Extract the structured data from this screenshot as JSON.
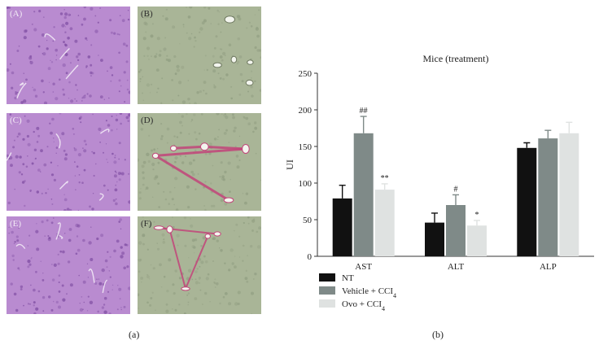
{
  "panel_a": {
    "panels": [
      {
        "label": "(A)",
        "stain": "he"
      },
      {
        "label": "(B)",
        "stain": "sirius"
      },
      {
        "label": "(C)",
        "stain": "he"
      },
      {
        "label": "(D)",
        "stain": "sirius"
      },
      {
        "label": "(E)",
        "stain": "he"
      },
      {
        "label": "(F)",
        "stain": "sirius"
      }
    ],
    "caption": "(a)"
  },
  "panel_b_caption": "(b)",
  "colors": {
    "he_tissue": "#b98bd0",
    "sirius_tissue": "#a9b597",
    "collagen": "#c2457a"
  },
  "chart_data": {
    "type": "bar",
    "title": "Mice (treatment)",
    "ylabel": "UI",
    "xlabel": "",
    "categories": [
      "AST",
      "ALT",
      "ALP"
    ],
    "ylim": [
      0,
      250
    ],
    "yticks": [
      0,
      50,
      100,
      150,
      200,
      250
    ],
    "grid": false,
    "legend_position": "bottom-left",
    "series": [
      {
        "name": "NT",
        "color": "#111111",
        "values": [
          79,
          46,
          148
        ],
        "errors": [
          18,
          13,
          7
        ],
        "annotations": [
          "",
          "",
          ""
        ]
      },
      {
        "name": "Vehicle + CCI",
        "name_subscript": "4",
        "color": "#7f8a88",
        "values": [
          168,
          70,
          161
        ],
        "errors": [
          23,
          14,
          11
        ],
        "annotations": [
          "##",
          "#",
          ""
        ]
      },
      {
        "name": "Ovo + CCI",
        "name_subscript": "4",
        "color": "#dfe2e1",
        "values": [
          91,
          42,
          168
        ],
        "errors": [
          8,
          7,
          15
        ],
        "annotations": [
          "**",
          "*",
          ""
        ]
      }
    ]
  }
}
